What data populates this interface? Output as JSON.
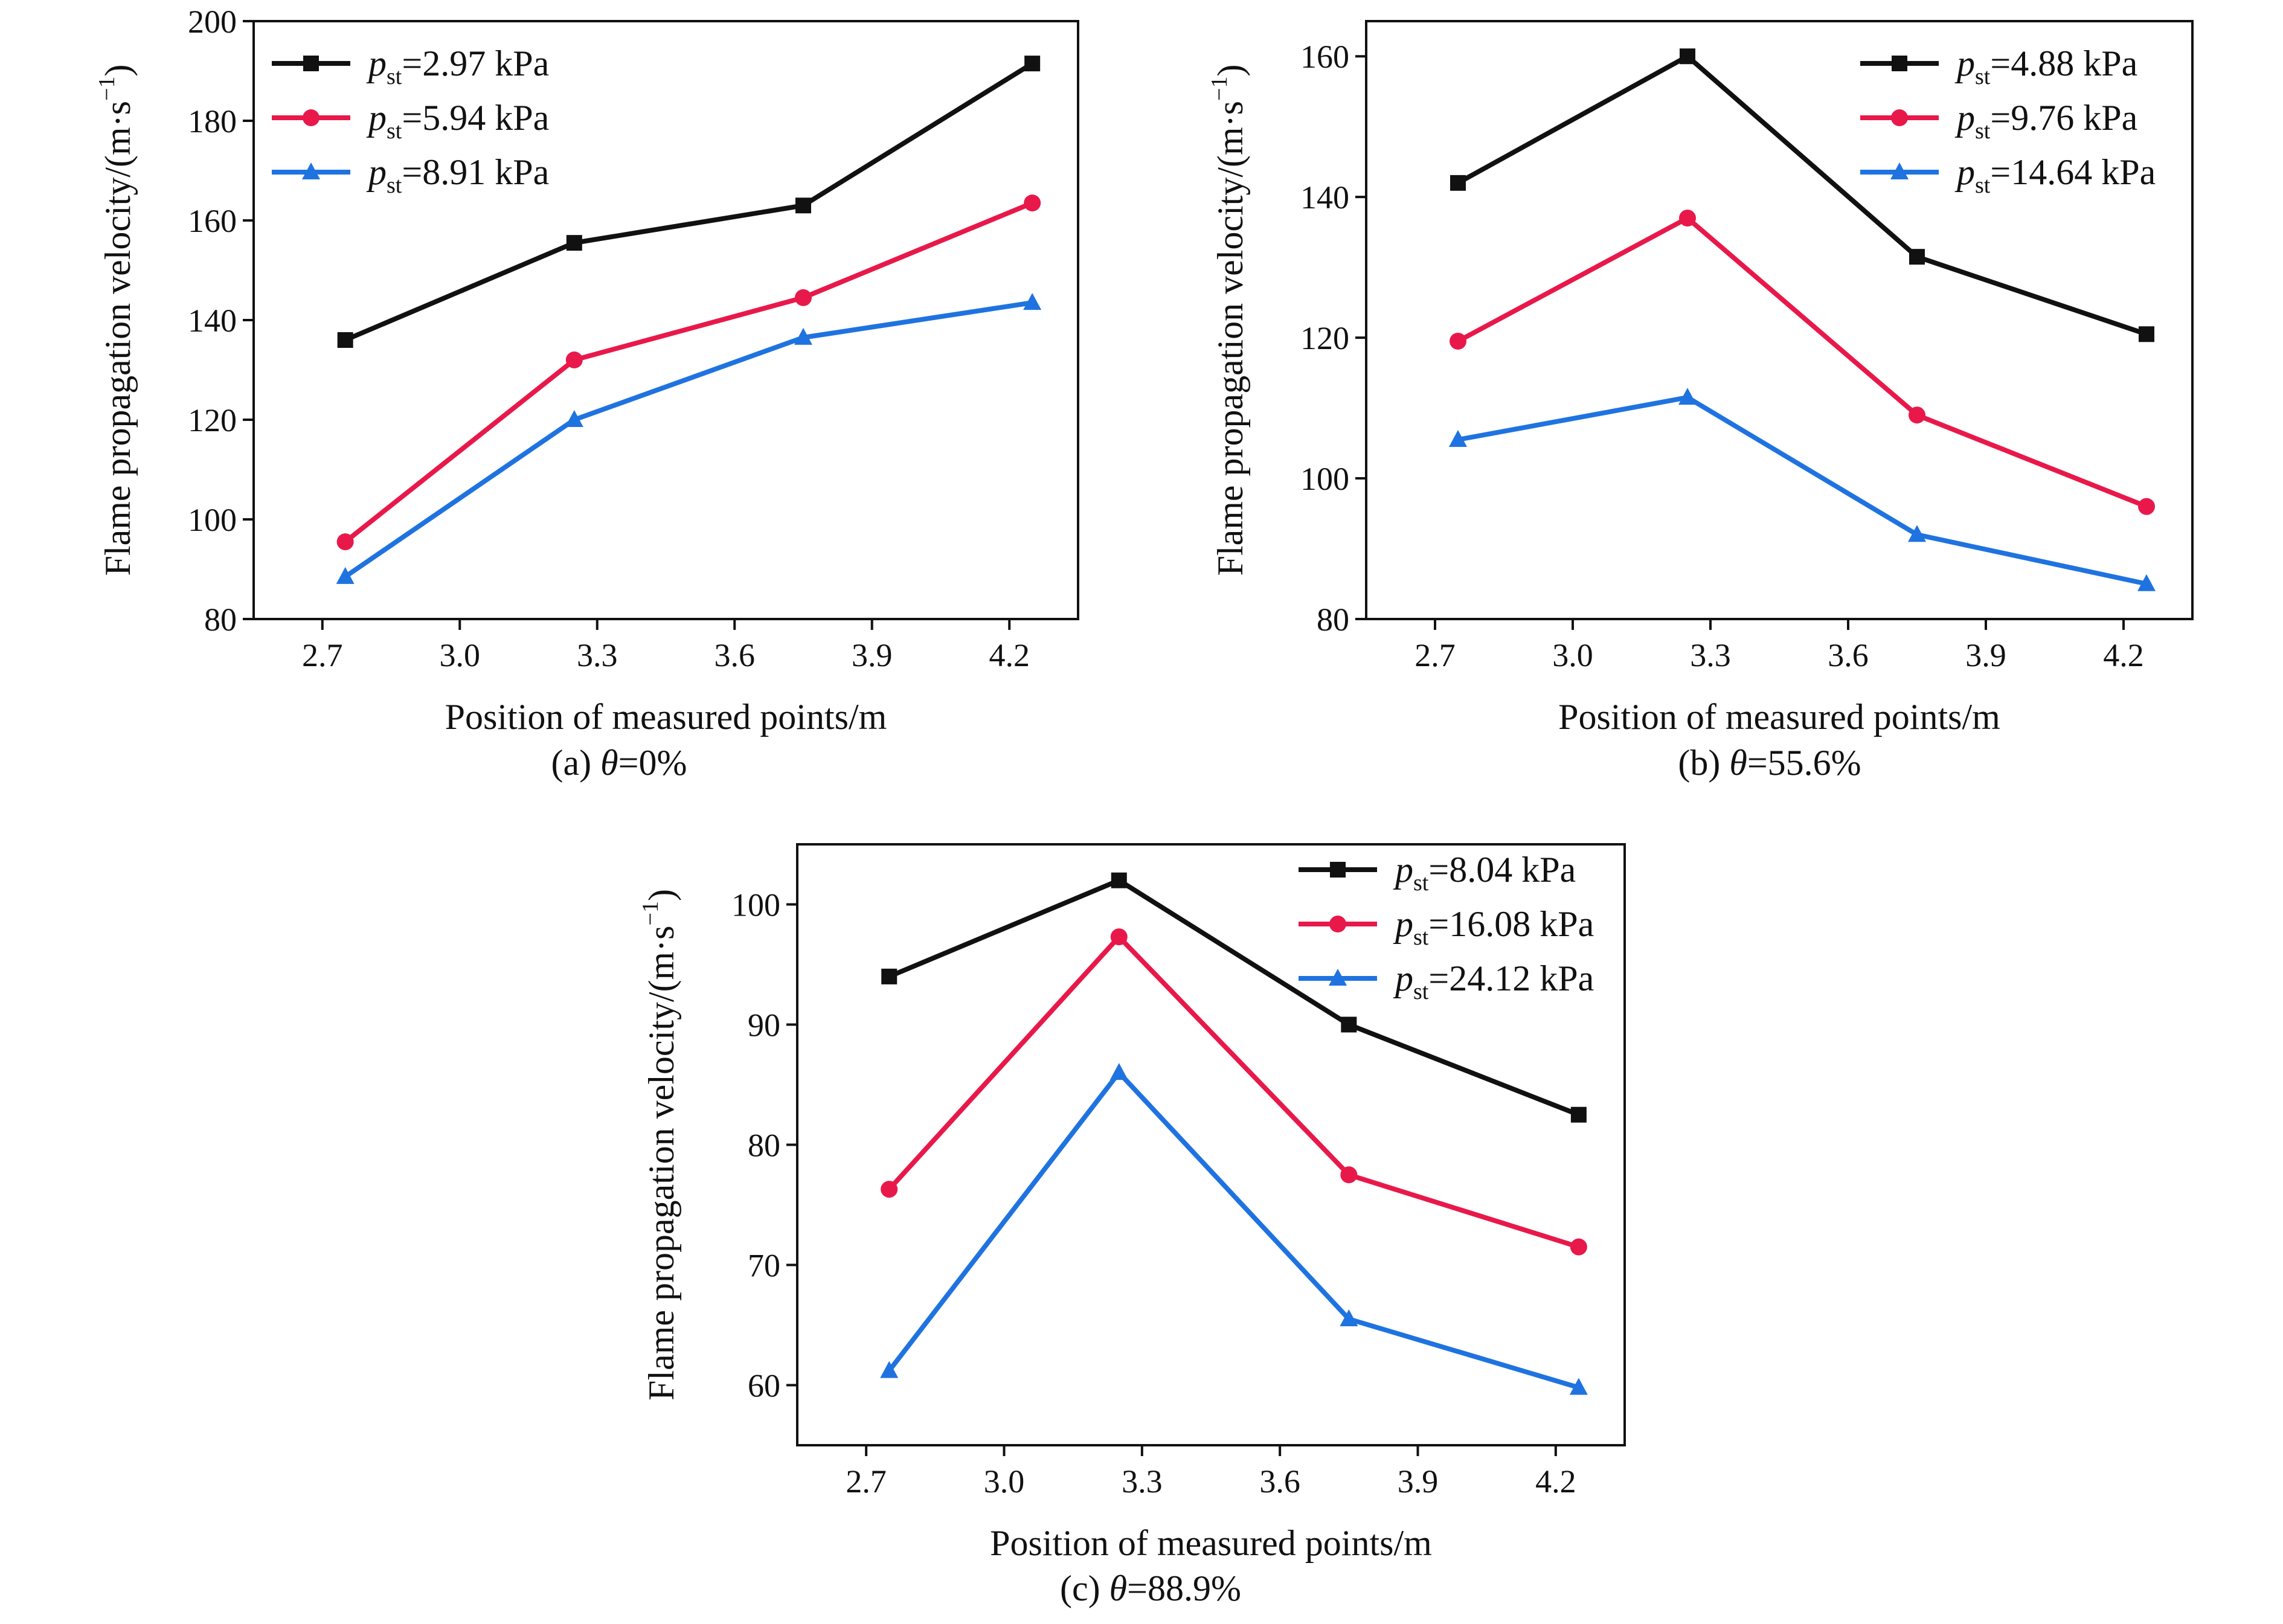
{
  "chart_data": [
    {
      "type": "line",
      "caption": {
        "prefix": "(a) ",
        "symbol": "θ",
        "rest": "=0%"
      },
      "xlabel": "Position of measured points/m",
      "ylabel": {
        "main": "Flame propagation velocity/(m·s",
        "sup": "−1",
        "close": ")"
      },
      "xlim": [
        2.55,
        4.35
      ],
      "ylim": [
        80,
        200
      ],
      "xticks": [
        "2.7",
        "3.0",
        "3.3",
        "3.6",
        "3.9",
        "4.2"
      ],
      "yticks": [
        "80",
        "100",
        "120",
        "140",
        "160",
        "180",
        "200"
      ],
      "grid": false,
      "legend_position": "top-left",
      "x": [
        2.75,
        3.25,
        3.75,
        4.25
      ],
      "series": [
        {
          "sym": "p",
          "sub": "st",
          "rest": "=2.97 kPa",
          "color": "#111111",
          "marker": "square",
          "values": [
            136,
            155.5,
            163,
            191.5
          ]
        },
        {
          "sym": "p",
          "sub": "st",
          "rest": "=5.94 kPa",
          "color": "#e8194a",
          "marker": "circle",
          "values": [
            95.5,
            132,
            144.5,
            163.5
          ]
        },
        {
          "sym": "p",
          "sub": "st",
          "rest": "=8.91 kPa",
          "color": "#1f73e0",
          "marker": "triangle",
          "values": [
            88.5,
            120,
            136.5,
            143.5
          ]
        }
      ]
    },
    {
      "type": "line",
      "caption": {
        "prefix": "(b) ",
        "symbol": "θ",
        "rest": "=55.6%"
      },
      "xlabel": "Position of measured points/m",
      "ylabel": {
        "main": "Flame propagation velocity/(m·s",
        "sup": "−1",
        "close": ")"
      },
      "xlim": [
        2.55,
        4.35
      ],
      "ylim": [
        80,
        165
      ],
      "xticks": [
        "2.7",
        "3.0",
        "3.3",
        "3.6",
        "3.9",
        "4.2"
      ],
      "yticks": [
        "80",
        "100",
        "120",
        "140",
        "160"
      ],
      "grid": false,
      "legend_position": "top-right",
      "x": [
        2.75,
        3.25,
        3.75,
        4.25
      ],
      "series": [
        {
          "sym": "p",
          "sub": "st",
          "rest": "=4.88 kPa",
          "color": "#111111",
          "marker": "square",
          "values": [
            142,
            160,
            131.5,
            120.5
          ]
        },
        {
          "sym": "p",
          "sub": "st",
          "rest": "=9.76 kPa",
          "color": "#e8194a",
          "marker": "circle",
          "values": [
            119.5,
            137,
            109,
            96
          ]
        },
        {
          "sym": "p",
          "sub": "st",
          "rest": "=14.64 kPa",
          "color": "#1f73e0",
          "marker": "triangle",
          "values": [
            105.5,
            111.5,
            92,
            85
          ]
        }
      ]
    },
    {
      "type": "line",
      "caption": {
        "prefix": "(c) ",
        "symbol": "θ",
        "rest": "=88.9%"
      },
      "xlabel": "Position of measured points/m",
      "ylabel": {
        "main": "Flame propagation velocity/(m·s",
        "sup": "−1",
        "close": ")"
      },
      "xlim": [
        2.55,
        4.35
      ],
      "ylim": [
        55,
        105
      ],
      "xticks": [
        "2.7",
        "3.0",
        "3.3",
        "3.6",
        "3.9",
        "4.2"
      ],
      "yticks": [
        "60",
        "70",
        "80",
        "90",
        "100"
      ],
      "grid": false,
      "legend_position": "top-right",
      "x": [
        2.75,
        3.25,
        3.75,
        4.25
      ],
      "series": [
        {
          "sym": "p",
          "sub": "st",
          "rest": "=8.04 kPa",
          "color": "#111111",
          "marker": "square",
          "values": [
            94,
            102,
            90,
            82.5
          ]
        },
        {
          "sym": "p",
          "sub": "st",
          "rest": "=16.08 kPa",
          "color": "#e8194a",
          "marker": "circle",
          "values": [
            76.3,
            97.3,
            77.5,
            71.5
          ]
        },
        {
          "sym": "p",
          "sub": "st",
          "rest": "=24.12 kPa",
          "color": "#1f73e0",
          "marker": "triangle",
          "values": [
            61.2,
            86,
            65.5,
            59.8
          ]
        }
      ]
    }
  ]
}
